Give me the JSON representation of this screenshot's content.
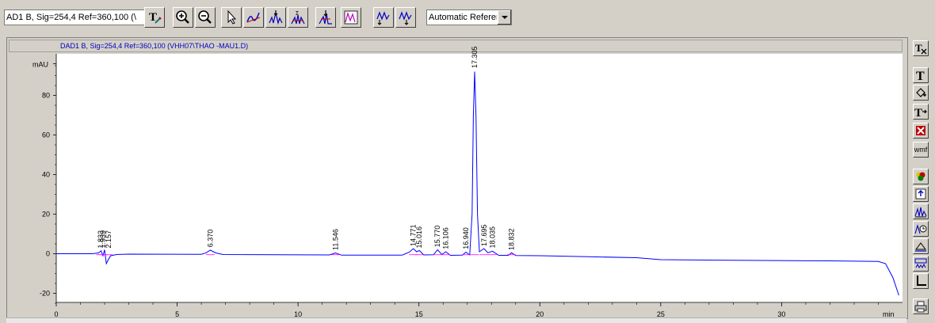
{
  "toolbar": {
    "signal_select": "AD1 B, Sig=254,4 Ref=360,100 (\\",
    "reference_select": "Automatic Referenc",
    "icons": [
      "text-tool-icon",
      "zoom-in-icon",
      "zoom-out-icon",
      "pointer-icon",
      "draw-baseline-icon",
      "integrate-peak-icon",
      "sum-peaks-icon",
      "split-peak-icon",
      "tangent-skim-icon",
      "peak-shoulders-icon",
      "negative-peaks-icon"
    ]
  },
  "chart": {
    "title": "DAD1 B, Sig=254,4 Ref=360,100 (VHH07\\THAO -MAU1.D)",
    "y_unit": "mAU",
    "x_unit": "min"
  },
  "chart_data": {
    "type": "line",
    "title": "DAD1 B, Sig=254,4 Ref=360,100 (VHH07\\THAO -MAU1.D)",
    "xlabel": "min",
    "ylabel": "mAU",
    "xlim": [
      0,
      35
    ],
    "ylim": [
      -27,
      101
    ],
    "x_ticks": [
      0,
      5,
      10,
      15,
      20,
      25,
      30
    ],
    "y_ticks": [
      -20,
      0,
      20,
      40,
      60,
      80
    ],
    "grid": false,
    "series": [
      {
        "color": "#0000ff",
        "points": [
          [
            0,
            0
          ],
          [
            1.5,
            0
          ],
          [
            1.75,
            0.4
          ],
          [
            1.85,
            1.5
          ],
          [
            1.93,
            -1
          ],
          [
            2.0,
            2
          ],
          [
            2.07,
            -5
          ],
          [
            2.15,
            -3
          ],
          [
            2.25,
            -1
          ],
          [
            2.5,
            -0.4
          ],
          [
            3,
            -0.2
          ],
          [
            6.0,
            -0.3
          ],
          [
            6.2,
            0.5
          ],
          [
            6.37,
            1.8
          ],
          [
            6.6,
            0.4
          ],
          [
            6.9,
            -0.4
          ],
          [
            11.3,
            -0.6
          ],
          [
            11.55,
            0.4
          ],
          [
            11.8,
            -0.7
          ],
          [
            14.3,
            -0.7
          ],
          [
            14.6,
            0.8
          ],
          [
            14.77,
            2.6
          ],
          [
            14.9,
            1.0
          ],
          [
            15.02,
            1.6
          ],
          [
            15.2,
            -0.6
          ],
          [
            15.6,
            -0.5
          ],
          [
            15.77,
            2.0
          ],
          [
            15.95,
            -0.4
          ],
          [
            16.11,
            1.0
          ],
          [
            16.3,
            -0.8
          ],
          [
            16.8,
            -0.7
          ],
          [
            16.94,
            0.8
          ],
          [
            17.1,
            -0.6
          ],
          [
            17.2,
            20
          ],
          [
            17.25,
            70
          ],
          [
            17.305,
            92
          ],
          [
            17.36,
            70
          ],
          [
            17.42,
            20
          ],
          [
            17.5,
            1.0
          ],
          [
            17.69,
            2.6
          ],
          [
            17.85,
            0.5
          ],
          [
            18.04,
            1.3
          ],
          [
            18.3,
            -0.8
          ],
          [
            18.7,
            -0.8
          ],
          [
            18.83,
            0.5
          ],
          [
            19.0,
            -0.9
          ],
          [
            20,
            -1.0
          ],
          [
            22,
            -1.5
          ],
          [
            24,
            -2.0
          ],
          [
            25,
            -3.0
          ],
          [
            28,
            -3.3
          ],
          [
            32,
            -3.6
          ],
          [
            34.0,
            -3.9
          ],
          [
            34.3,
            -5
          ],
          [
            34.6,
            -12
          ],
          [
            34.85,
            -21
          ]
        ]
      }
    ],
    "peak_labels": [
      "1.833",
      "1.939",
      "2.157",
      "6.370",
      "11.546",
      "14.771",
      "15.016",
      "15.770",
      "16.106",
      "16.940",
      "17.305",
      "17.695",
      "18.035",
      "18.832"
    ]
  },
  "right_toolbar": {
    "wmf_label": "wmf",
    "icons": [
      "text-delete-icon",
      "text-icon",
      "text-move-icon",
      "text-arrow-icon",
      "delete-all-icon",
      "wmf-export-icon",
      "colors-icon",
      "upload-icon",
      "overlay-icon",
      "time-icon",
      "baseline-icon",
      "spectra-icon",
      "axis-icon",
      "print-icon"
    ]
  }
}
